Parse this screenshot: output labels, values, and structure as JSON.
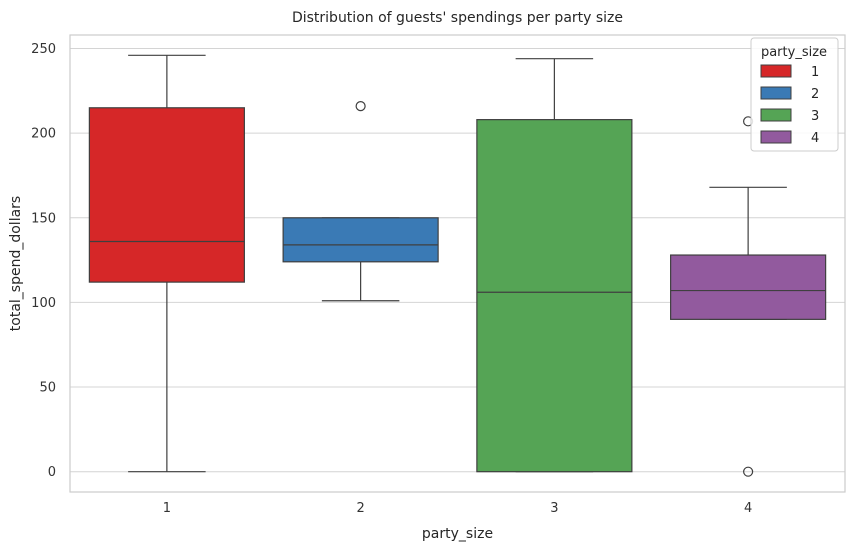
{
  "chart_data": {
    "type": "box",
    "title": "Distribution of guests' spendings per party size",
    "xlabel": "party_size",
    "ylabel": "total_spend_dollars",
    "categories": [
      "1",
      "2",
      "3",
      "4"
    ],
    "ylim": [
      -12,
      258
    ],
    "yticks": [
      0,
      50,
      100,
      150,
      200,
      250
    ],
    "grid": true,
    "legend": {
      "title": "party_size",
      "placement": "top-right",
      "entries": [
        "1",
        "2",
        "3",
        "4"
      ]
    },
    "boxes": [
      {
        "category": "1",
        "color": "#d62728",
        "whisker_low": 0,
        "q1": 112,
        "median": 136,
        "q3": 215,
        "whisker_high": 246,
        "outliers": []
      },
      {
        "category": "2",
        "color": "#3a7ab5",
        "whisker_low": 101,
        "q1": 124,
        "median": 134,
        "q3": 150,
        "whisker_high": 150,
        "outliers": [
          216
        ]
      },
      {
        "category": "3",
        "color": "#55a455",
        "whisker_low": 0,
        "q1": 0,
        "median": 106,
        "q3": 208,
        "whisker_high": 244,
        "outliers": []
      },
      {
        "category": "4",
        "color": "#925a9e",
        "whisker_low": 90,
        "q1": 90,
        "median": 107,
        "q3": 128,
        "whisker_high": 168,
        "outliers": [
          207,
          0
        ]
      }
    ]
  }
}
